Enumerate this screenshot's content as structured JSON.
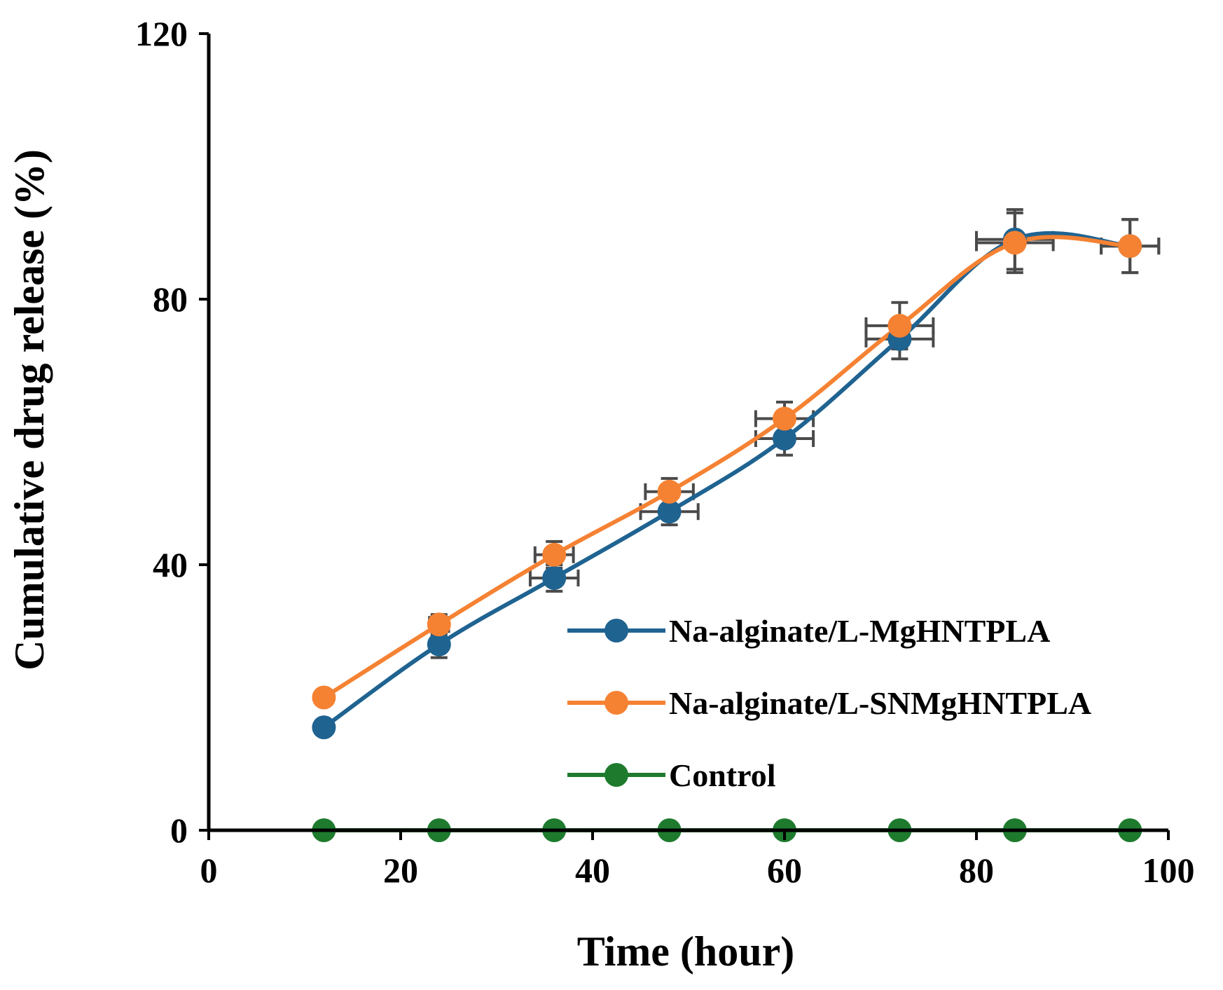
{
  "chart_data": {
    "type": "line",
    "title": "",
    "xlabel": "Time (hour)",
    "ylabel": "Cumulative drug release (%)",
    "xlim": [
      0,
      100
    ],
    "ylim": [
      0,
      120
    ],
    "xticks": [
      0,
      20,
      40,
      60,
      80,
      100
    ],
    "yticks": [
      0,
      40,
      80,
      120
    ],
    "grid": false,
    "legend_position": "lower-right",
    "smoothed_lines": true,
    "error_bars": "x and y, on Na-alginate series",
    "x": [
      12,
      24,
      36,
      48,
      60,
      72,
      84,
      96
    ],
    "series": [
      {
        "name": "Na-alginate/L-MgHNTPLA",
        "color": "#1f6391",
        "values": [
          15.5,
          28,
          38,
          48,
          59,
          74,
          89,
          88
        ],
        "error_y": [
          1,
          2,
          2,
          2,
          2.5,
          3,
          4.5,
          4
        ],
        "error_x": [
          0,
          0,
          2.5,
          3,
          3,
          3.5,
          4,
          3
        ]
      },
      {
        "name": "Na-alginate/L-SNMgHNTPLA",
        "color": "#f58233",
        "values": [
          20,
          31,
          41.5,
          51,
          62,
          76,
          88.5,
          88
        ],
        "error_y": [
          0.8,
          1.5,
          2,
          2,
          2.5,
          3.5,
          4.5,
          4
        ],
        "error_x": [
          0,
          1,
          2,
          2.5,
          3,
          3.5,
          4,
          3
        ]
      },
      {
        "name": "Control",
        "color": "#1e7b2e",
        "values": [
          0,
          0,
          0,
          0,
          0,
          0,
          0,
          0
        ]
      }
    ]
  }
}
